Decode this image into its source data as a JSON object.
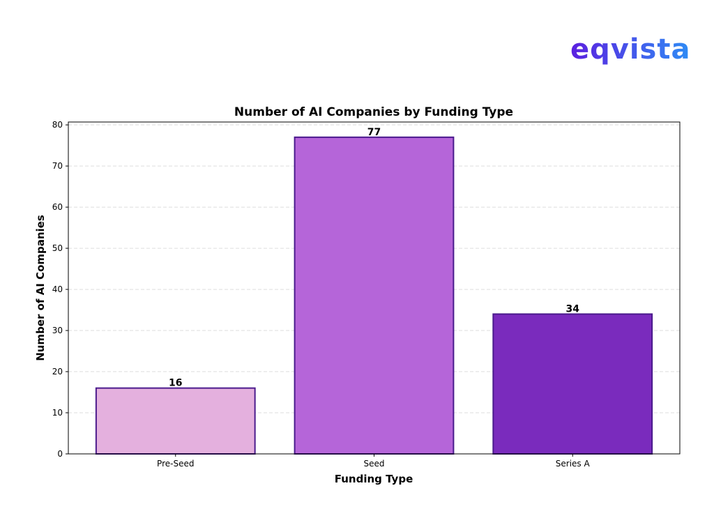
{
  "logo": {
    "text": "eqvista",
    "gradient": [
      "#5b1fe0",
      "#2e8cf5"
    ]
  },
  "chart_data": {
    "type": "bar",
    "title": "Number of AI Companies by Funding Type",
    "xlabel": "Funding Type",
    "ylabel": "Number of AI Companies",
    "categories": [
      "Pre-Seed",
      "Seed",
      "Series A"
    ],
    "values": [
      16,
      77,
      34
    ],
    "data_labels": [
      "16",
      "77",
      "34"
    ],
    "colors": [
      "#e4b0de",
      "#b565d9",
      "#7a2bbd"
    ],
    "edge_color": "#4a1a8c",
    "ylim": [
      0,
      80.7
    ],
    "yticks": [
      0,
      10,
      20,
      30,
      40,
      50,
      60,
      70,
      80
    ],
    "grid": "y dashed",
    "legend": "none"
  }
}
